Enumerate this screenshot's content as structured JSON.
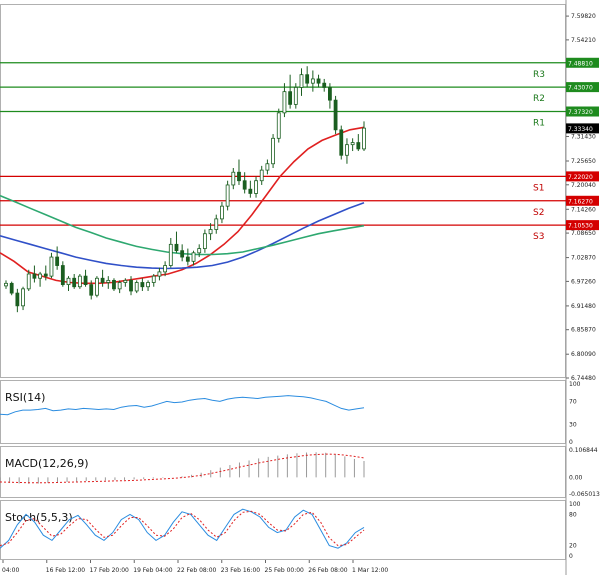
{
  "chart_data": {
    "type": "candlestick",
    "instrument_scale": "price",
    "price_ticks": [
      "7.59820",
      "7.54210",
      "7.48810",
      "7.43070",
      "7.37320",
      "7.33340",
      "7.31430",
      "7.25650",
      "7.20040",
      "7.16270",
      "7.14260",
      "7.10530",
      "7.08650",
      "7.02870",
      "6.97260",
      "6.91480",
      "6.85870",
      "6.80090",
      "6.74480"
    ],
    "levels": [
      {
        "name": "R3",
        "value": 7.4881,
        "color": "#1e8b1e",
        "tag": "7.48810"
      },
      {
        "name": "R2",
        "value": 7.4307,
        "color": "#1e8b1e",
        "tag": "7.43070"
      },
      {
        "name": "R1",
        "value": 7.3732,
        "color": "#1e8b1e",
        "tag": "7.37320"
      },
      {
        "name": "S1",
        "value": 7.2202,
        "color": "#d40000",
        "tag": "7.22020"
      },
      {
        "name": "S2",
        "value": 7.1627,
        "color": "#d40000",
        "tag": "7.16270"
      },
      {
        "name": "S3",
        "value": 7.1053,
        "color": "#d40000",
        "tag": "7.10530"
      }
    ],
    "last_price": {
      "value": 7.3334,
      "tag": "7.33340"
    },
    "price_range": [
      6.7448,
      7.6267
    ],
    "candles": [
      [
        6.962,
        6.975,
        6.955,
        6.968
      ],
      [
        6.968,
        6.972,
        6.94,
        6.945
      ],
      [
        6.945,
        6.955,
        6.9,
        6.915
      ],
      [
        6.915,
        6.96,
        6.905,
        6.955
      ],
      [
        6.955,
        7.0,
        6.95,
        6.99
      ],
      [
        6.99,
        7.01,
        6.97,
        6.98
      ],
      [
        6.98,
        6.995,
        6.96,
        6.99
      ],
      [
        6.99,
        7.01,
        6.975,
        6.985
      ],
      [
        6.985,
        7.04,
        6.98,
        7.03
      ],
      [
        7.03,
        7.055,
        7.0,
        7.01
      ],
      [
        7.01,
        7.02,
        6.96,
        6.965
      ],
      [
        6.965,
        6.985,
        6.95,
        6.98
      ],
      [
        6.98,
        6.99,
        6.955,
        6.96
      ],
      [
        6.96,
        6.99,
        6.955,
        6.985
      ],
      [
        6.985,
        7.0,
        6.96,
        6.965
      ],
      [
        6.965,
        6.975,
        6.93,
        6.94
      ],
      [
        6.94,
        6.985,
        6.935,
        6.98
      ],
      [
        6.98,
        7.0,
        6.96,
        6.97
      ],
      [
        6.97,
        6.985,
        6.955,
        6.975
      ],
      [
        6.975,
        6.98,
        6.95,
        6.955
      ],
      [
        6.955,
        6.975,
        6.945,
        6.97
      ],
      [
        6.97,
        6.98,
        6.96,
        6.975
      ],
      [
        6.975,
        6.985,
        6.94,
        6.95
      ],
      [
        6.95,
        6.975,
        6.945,
        6.97
      ],
      [
        6.97,
        6.98,
        6.95,
        6.96
      ],
      [
        6.96,
        6.975,
        6.95,
        6.97
      ],
      [
        6.97,
        6.99,
        6.96,
        6.985
      ],
      [
        6.985,
        7.005,
        6.975,
        6.995
      ],
      [
        6.995,
        7.02,
        6.985,
        7.01
      ],
      [
        7.01,
        7.075,
        7.005,
        7.06
      ],
      [
        7.06,
        7.09,
        7.04,
        7.045
      ],
      [
        7.045,
        7.06,
        7.02,
        7.03
      ],
      [
        7.03,
        7.05,
        7.01,
        7.02
      ],
      [
        7.02,
        7.045,
        7.01,
        7.04
      ],
      [
        7.04,
        7.06,
        7.03,
        7.05
      ],
      [
        7.05,
        7.095,
        7.04,
        7.085
      ],
      [
        7.085,
        7.11,
        7.07,
        7.095
      ],
      [
        7.095,
        7.13,
        7.085,
        7.12
      ],
      [
        7.12,
        7.16,
        7.11,
        7.15
      ],
      [
        7.15,
        7.21,
        7.14,
        7.2
      ],
      [
        7.2,
        7.24,
        7.19,
        7.23
      ],
      [
        7.23,
        7.26,
        7.2,
        7.21
      ],
      [
        7.21,
        7.23,
        7.18,
        7.19
      ],
      [
        7.19,
        7.21,
        7.17,
        7.18
      ],
      [
        7.18,
        7.22,
        7.17,
        7.21
      ],
      [
        7.21,
        7.245,
        7.2,
        7.235
      ],
      [
        7.235,
        7.26,
        7.225,
        7.25
      ],
      [
        7.25,
        7.32,
        7.24,
        7.31
      ],
      [
        7.31,
        7.38,
        7.3,
        7.37
      ],
      [
        7.37,
        7.44,
        7.36,
        7.42
      ],
      [
        7.42,
        7.46,
        7.38,
        7.39
      ],
      [
        7.39,
        7.44,
        7.38,
        7.43
      ],
      [
        7.43,
        7.475,
        7.41,
        7.46
      ],
      [
        7.46,
        7.48,
        7.43,
        7.44
      ],
      [
        7.44,
        7.47,
        7.42,
        7.45
      ],
      [
        7.45,
        7.46,
        7.43,
        7.44
      ],
      [
        7.44,
        7.45,
        7.42,
        7.43
      ],
      [
        7.43,
        7.44,
        7.38,
        7.4
      ],
      [
        7.4,
        7.41,
        7.32,
        7.33
      ],
      [
        7.33,
        7.34,
        7.26,
        7.27
      ],
      [
        7.27,
        7.31,
        7.25,
        7.295
      ],
      [
        7.295,
        7.31,
        7.28,
        7.3
      ],
      [
        7.3,
        7.32,
        7.28,
        7.285
      ],
      [
        7.285,
        7.35,
        7.28,
        7.334
      ]
    ],
    "series": [
      {
        "name": "MA fast",
        "color": "#e02020",
        "values": [
          7.04,
          7.02,
          6.995,
          6.985,
          6.975,
          6.97,
          6.968,
          6.968,
          6.97,
          6.975,
          6.98,
          6.985,
          6.99,
          7.0,
          7.015,
          7.035,
          7.06,
          7.09,
          7.13,
          7.175,
          7.22,
          7.255,
          7.285,
          7.305,
          7.318,
          7.33,
          7.336
        ]
      },
      {
        "name": "MA mid",
        "color": "#3050c8",
        "values": [
          7.08,
          7.07,
          7.06,
          7.05,
          7.04,
          7.03,
          7.022,
          7.015,
          7.01,
          7.006,
          7.004,
          7.003,
          7.004,
          7.006,
          7.01,
          7.018,
          7.03,
          7.045,
          7.062,
          7.08,
          7.098,
          7.115,
          7.13,
          7.145,
          7.158
        ]
      },
      {
        "name": "MA slow",
        "color": "#2ea870",
        "values": [
          7.175,
          7.16,
          7.145,
          7.13,
          7.115,
          7.1,
          7.088,
          7.075,
          7.065,
          7.055,
          7.048,
          7.042,
          7.038,
          7.036,
          7.036,
          7.038,
          7.042,
          7.05,
          7.058,
          7.067,
          7.076,
          7.085,
          7.092,
          7.098,
          7.104
        ]
      }
    ],
    "time_labels": [
      "04:00",
      "16 Feb 12:00",
      "17 Feb 20:00",
      "19 Feb 04:00",
      "22 Feb 08:00",
      "23 Feb 16:00",
      "25 Feb 00:00",
      "26 Feb 08:00",
      "1 Mar 12:00"
    ],
    "panels": [
      {
        "name": "RSI(14)",
        "ticks": [
          "100",
          "70",
          "30",
          "0"
        ],
        "range": [
          0,
          100
        ],
        "values": [
          48,
          47,
          52,
          55,
          55,
          56,
          58,
          54,
          55,
          57,
          56,
          58,
          57,
          56,
          57,
          56,
          60,
          62,
          63,
          60,
          62,
          66,
          70,
          68,
          69,
          72,
          74,
          75,
          72,
          70,
          74,
          76,
          77,
          76,
          75,
          77,
          78,
          79,
          80,
          79,
          78,
          76,
          73,
          70,
          64,
          58,
          55,
          57,
          59
        ]
      },
      {
        "name": "MACD(12,26,9)",
        "ticks": [
          "0.106844",
          "0.00",
          "-0.065013"
        ],
        "range": [
          -0.065013,
          0.106844
        ],
        "hist": [
          -0.02,
          -0.022,
          -0.024,
          -0.025,
          -0.024,
          -0.022,
          -0.02,
          -0.018,
          -0.016,
          -0.014,
          -0.013,
          -0.012,
          -0.011,
          -0.01,
          -0.008,
          -0.006,
          -0.004,
          -0.002,
          0.0,
          0.004,
          0.01,
          0.018,
          0.028,
          0.038,
          0.048,
          0.058,
          0.066,
          0.074,
          0.08,
          0.085,
          0.09,
          0.094,
          0.097,
          0.098,
          0.096,
          0.09,
          0.082,
          0.072,
          0.064
        ],
        "signal": [
          -0.018,
          -0.019,
          -0.02,
          -0.021,
          -0.021,
          -0.021,
          -0.02,
          -0.019,
          -0.018,
          -0.017,
          -0.016,
          -0.015,
          -0.014,
          -0.013,
          -0.012,
          -0.01,
          -0.008,
          -0.006,
          -0.004,
          -0.001,
          0.003,
          0.008,
          0.015,
          0.023,
          0.031,
          0.04,
          0.048,
          0.056,
          0.063,
          0.07,
          0.076,
          0.081,
          0.086,
          0.089,
          0.091,
          0.09,
          0.087,
          0.082,
          0.076
        ]
      },
      {
        "name": "Stoch(5,5,3)",
        "ticks": [
          "100",
          "80",
          "20",
          "0"
        ],
        "range": [
          0,
          100
        ],
        "main": [
          15,
          30,
          60,
          80,
          65,
          40,
          30,
          50,
          70,
          78,
          60,
          40,
          30,
          45,
          70,
          80,
          70,
          45,
          30,
          40,
          65,
          85,
          80,
          60,
          40,
          30,
          55,
          80,
          90,
          85,
          75,
          55,
          45,
          50,
          75,
          88,
          80,
          50,
          20,
          15,
          25,
          45,
          55
        ],
        "signal": [
          20,
          25,
          45,
          68,
          72,
          55,
          38,
          42,
          58,
          72,
          70,
          52,
          36,
          40,
          58,
          74,
          74,
          58,
          40,
          38,
          52,
          74,
          82,
          70,
          50,
          36,
          45,
          68,
          84,
          86,
          80,
          64,
          50,
          48,
          62,
          80,
          84,
          65,
          35,
          20,
          22,
          36,
          50
        ]
      }
    ]
  }
}
